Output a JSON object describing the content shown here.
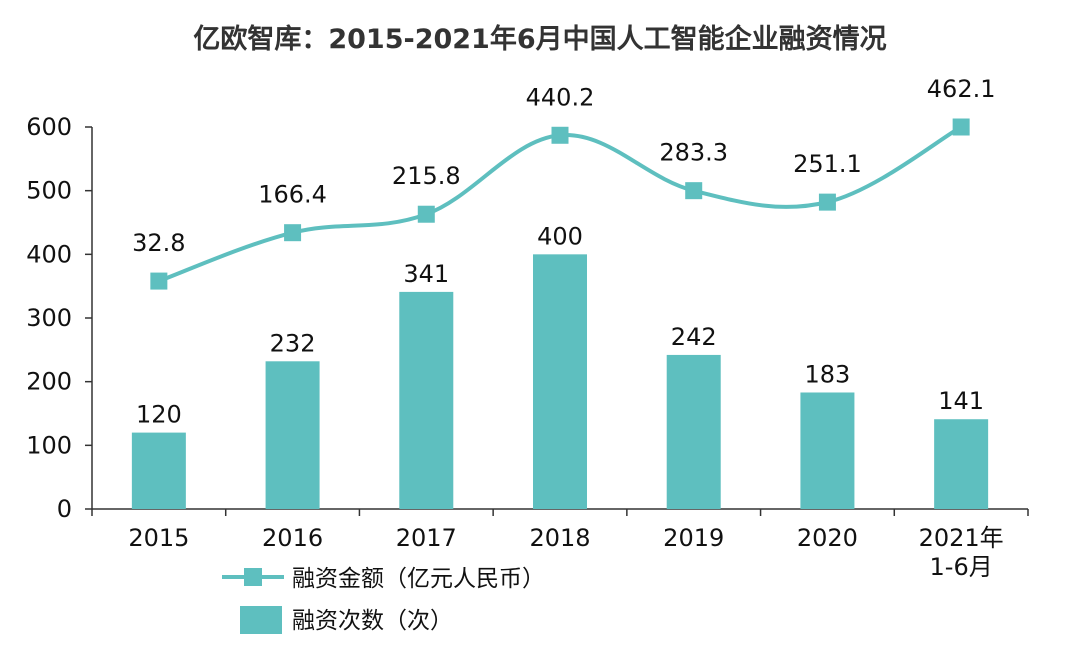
{
  "chart_data": {
    "type": "bar+line",
    "title": "亿欧智库：2015-2021年6月中国人工智能企业融资情况",
    "categories": [
      "2015",
      "2016",
      "2017",
      "2018",
      "2019",
      "2020",
      "2021年\n1-6月"
    ],
    "ylim": [
      0,
      600
    ],
    "yticks": [
      "0",
      "100",
      "200",
      "300",
      "400",
      "500",
      "600"
    ],
    "colors": {
      "bar": "#5ebfbf",
      "line": "#5ebfbf",
      "axis": "#333333"
    },
    "series": [
      {
        "name": "融资次数（次）",
        "kind": "bar",
        "values": [
          120,
          232,
          341,
          400,
          242,
          183,
          141
        ],
        "labels": [
          "120",
          "232",
          "341",
          "400",
          "242",
          "183",
          "141"
        ]
      },
      {
        "name": "融资金额（亿元人民币）",
        "kind": "line",
        "values": [
          32.8,
          166.4,
          215.8,
          440.2,
          283.3,
          251.1,
          462.1
        ],
        "labels": [
          "32.8",
          "166.4",
          "215.8",
          "440.2",
          "283.3",
          "251.1",
          "462.1"
        ],
        "plotted_on_axis": [
          358,
          434,
          463,
          587,
          500,
          482,
          600
        ]
      }
    ],
    "legend": {
      "placement": "bottom-left"
    }
  }
}
